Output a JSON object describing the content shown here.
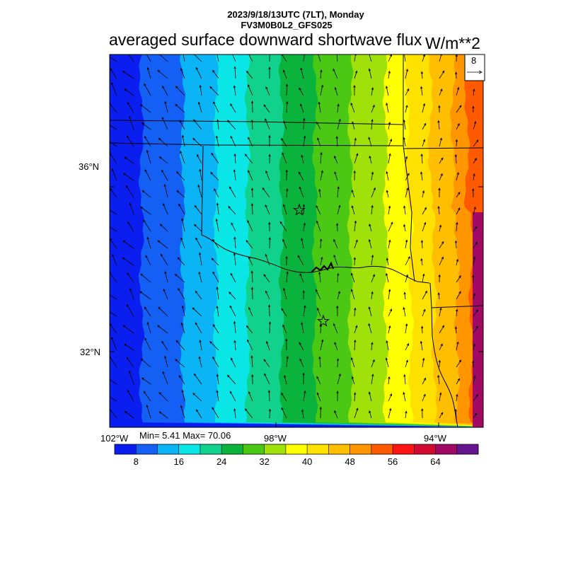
{
  "header": {
    "datetime": "2023/9/18/13UTC (7LT), Monday",
    "model": "FV3M0B0L2_GFS025",
    "title": "averaged surface downward shortwave flux",
    "units": "W/m**2"
  },
  "reference_vector": {
    "value": "8"
  },
  "axes": {
    "lat_labels": [
      "36°N",
      "32°N"
    ],
    "lon_labels": [
      "102°W",
      "98°W",
      "94°W"
    ]
  },
  "stats": {
    "text": "Min= 5.41 Max= 70.06"
  },
  "colorbar": {
    "colors": [
      "#0a1ef0",
      "#1460f5",
      "#0ab4f5",
      "#0ae6e6",
      "#10d28c",
      "#0ab43c",
      "#4bc814",
      "#a0e10a",
      "#ffff00",
      "#ffe100",
      "#ffbe00",
      "#ff9600",
      "#ff5a00",
      "#ff1414",
      "#d20a32",
      "#a00a64",
      "#64148c"
    ],
    "labels": [
      "8",
      "16",
      "24",
      "32",
      "40",
      "48",
      "56",
      "64"
    ]
  },
  "map": {
    "wind_direction": "north-northeast, fanning westward toward the west",
    "markers": [
      "star",
      "star"
    ]
  }
}
